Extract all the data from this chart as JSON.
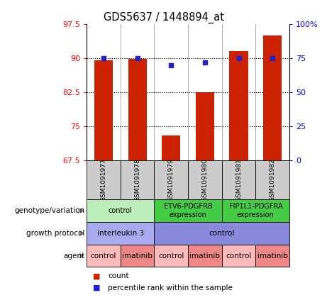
{
  "title": "GDS5637 / 1448894_at",
  "samples": [
    "GSM1091977",
    "GSM1091978",
    "GSM1091979",
    "GSM1091980",
    "GSM1091981",
    "GSM1091982"
  ],
  "bar_values": [
    89.5,
    89.8,
    73.0,
    82.5,
    91.5,
    95.0
  ],
  "dot_values": [
    75,
    75,
    70,
    72,
    75,
    75
  ],
  "ylim_left": [
    67.5,
    97.5
  ],
  "ylim_right": [
    0,
    100
  ],
  "yticks_left": [
    67.5,
    75,
    82.5,
    90,
    97.5
  ],
  "yticks_right": [
    0,
    25,
    50,
    75,
    100
  ],
  "ytick_labels_left": [
    "67.5",
    "75",
    "82.5",
    "90",
    "97.5"
  ],
  "ytick_labels_right": [
    "0",
    "25",
    "50",
    "75",
    "100%"
  ],
  "bar_color": "#cc2200",
  "dot_color": "#2222cc",
  "bar_bottom": 67.5,
  "hgrid_lines": [
    75,
    82.5,
    90
  ],
  "genotype_labels": [
    {
      "text": "control",
      "span": [
        0,
        2
      ],
      "color": "#bbeebb"
    },
    {
      "text": "ETV6-PDGFRB\nexpression",
      "span": [
        2,
        4
      ],
      "color": "#44cc44"
    },
    {
      "text": "FIP1L1-PDGFRA\nexpression",
      "span": [
        4,
        6
      ],
      "color": "#44cc44"
    }
  ],
  "growth_labels": [
    {
      "text": "interleukin 3",
      "span": [
        0,
        2
      ],
      "color": "#aaaaee"
    },
    {
      "text": "control",
      "span": [
        2,
        6
      ],
      "color": "#8888dd"
    }
  ],
  "agent_labels": [
    {
      "text": "control",
      "span": [
        0,
        1
      ],
      "color": "#ffbbbb"
    },
    {
      "text": "imatinib",
      "span": [
        1,
        2
      ],
      "color": "#ee8888"
    },
    {
      "text": "control",
      "span": [
        2,
        3
      ],
      "color": "#ffbbbb"
    },
    {
      "text": "imatinib",
      "span": [
        3,
        4
      ],
      "color": "#ee8888"
    },
    {
      "text": "control",
      "span": [
        4,
        5
      ],
      "color": "#ffbbbb"
    },
    {
      "text": "imatinib",
      "span": [
        5,
        6
      ],
      "color": "#ee8888"
    }
  ],
  "row_labels": [
    "genotype/variation",
    "growth protocol",
    "agent"
  ],
  "sample_bg_color": "#cccccc",
  "legend_count_color": "#cc2200",
  "legend_dot_color": "#2222cc",
  "legend_count_label": "count",
  "legend_dot_label": "percentile rank within the sample",
  "arrow_color": "#888888"
}
